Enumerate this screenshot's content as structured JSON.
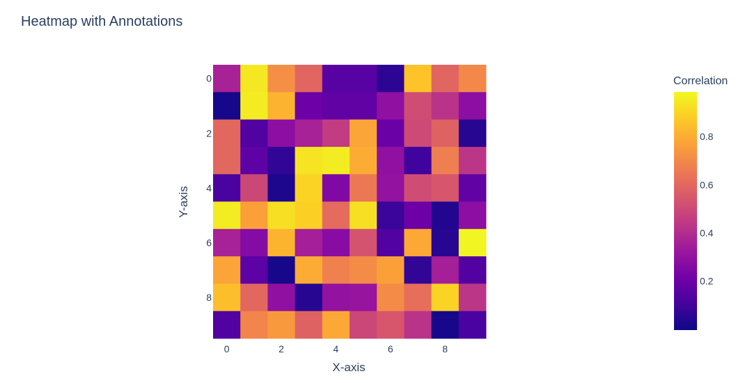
{
  "chart_data": {
    "type": "heatmap",
    "title": "Heatmap with Annotations",
    "xlabel": "X-axis",
    "ylabel": "Y-axis",
    "x_tick_labels": [
      "0",
      "2",
      "4",
      "6",
      "8"
    ],
    "y_tick_labels": [
      "0",
      "2",
      "4",
      "6",
      "8"
    ],
    "x": [
      0,
      1,
      2,
      3,
      4,
      5,
      6,
      7,
      8,
      9
    ],
    "y": [
      0,
      1,
      2,
      3,
      4,
      5,
      6,
      7,
      8,
      9
    ],
    "z": [
      [
        0.37,
        0.96,
        0.73,
        0.6,
        0.16,
        0.16,
        0.06,
        0.87,
        0.6,
        0.71
      ],
      [
        0.02,
        0.97,
        0.83,
        0.21,
        0.18,
        0.18,
        0.3,
        0.52,
        0.43,
        0.29
      ],
      [
        0.61,
        0.14,
        0.29,
        0.37,
        0.46,
        0.79,
        0.2,
        0.51,
        0.59,
        0.05
      ],
      [
        0.61,
        0.17,
        0.07,
        0.95,
        0.97,
        0.81,
        0.3,
        0.1,
        0.68,
        0.44
      ],
      [
        0.12,
        0.5,
        0.03,
        0.91,
        0.26,
        0.66,
        0.31,
        0.52,
        0.55,
        0.18
      ],
      [
        0.97,
        0.78,
        0.94,
        0.9,
        0.62,
        0.94,
        0.09,
        0.21,
        0.04,
        0.29
      ],
      [
        0.37,
        0.27,
        0.83,
        0.36,
        0.28,
        0.54,
        0.14,
        0.8,
        0.05,
        0.99
      ],
      [
        0.79,
        0.17,
        0.02,
        0.81,
        0.69,
        0.72,
        0.78,
        0.07,
        0.36,
        0.14
      ],
      [
        0.86,
        0.61,
        0.3,
        0.05,
        0.31,
        0.32,
        0.72,
        0.63,
        0.91,
        0.44
      ],
      [
        0.14,
        0.7,
        0.76,
        0.59,
        0.8,
        0.5,
        0.55,
        0.43,
        0.02,
        0.12
      ]
    ],
    "zmin": 0.0,
    "zmax": 1.0,
    "colorscale": "plasma",
    "colorbar": {
      "title": "Correlation",
      "tick_values": [
        0.2,
        0.4,
        0.6,
        0.8
      ],
      "tick_labels": [
        "0.2",
        "0.4",
        "0.6",
        "0.8"
      ]
    },
    "y_reversed": true,
    "grid": false
  }
}
